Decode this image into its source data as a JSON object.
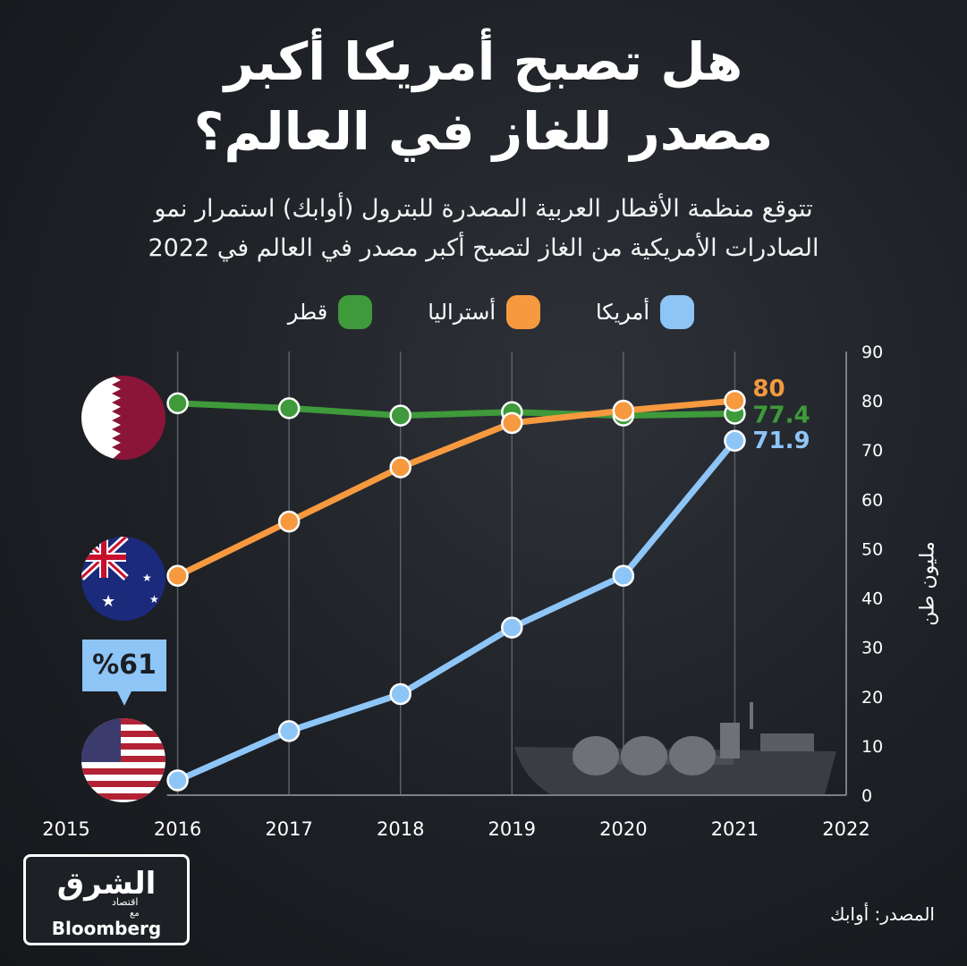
{
  "title_line1": "هل تصبح أمريكا أكبر",
  "title_line2": "مصدر للغاز في العالم؟",
  "subtitle_line1": "تتوقع منظمة الأقطار العربية المصدرة للبترول (أوابك) استمرار نمو",
  "subtitle_line2": "الصادرات الأمريكية من الغاز لتصبح أكبر مصدر في العالم في 2022",
  "callout": "%61",
  "source": "المصدر: أوابك",
  "logo": {
    "main": "الشرق",
    "sub": "اقتصاد",
    "with": "مع",
    "partner": "Bloomberg"
  },
  "colors": {
    "usa": "#8ec5f7",
    "australia": "#f6993f",
    "qatar": "#3e9a3a"
  },
  "chart_data": {
    "type": "line",
    "x_ticks": [
      "2015",
      "2016",
      "2017",
      "2018",
      "2019",
      "2020",
      "2021",
      "2022"
    ],
    "x": [
      2016,
      2017,
      2018,
      2019,
      2020,
      2021
    ],
    "ylabel": "مليون طن",
    "ylim": [
      0,
      90
    ],
    "y_ticks": [
      0,
      10,
      20,
      30,
      40,
      50,
      60,
      70,
      80,
      90
    ],
    "series": [
      {
        "name": "أمريكا",
        "key": "usa",
        "values": [
          3,
          13,
          20.5,
          34,
          44.5,
          71.9
        ],
        "end_label": "71.9"
      },
      {
        "name": "أستراليا",
        "key": "australia",
        "values": [
          44.5,
          55.5,
          66.5,
          75.5,
          78,
          80
        ],
        "end_label": "80"
      },
      {
        "name": "قطر",
        "key": "qatar",
        "values": [
          79.5,
          78.5,
          77,
          77.7,
          77,
          77.4
        ],
        "end_label": "77.4"
      }
    ]
  }
}
